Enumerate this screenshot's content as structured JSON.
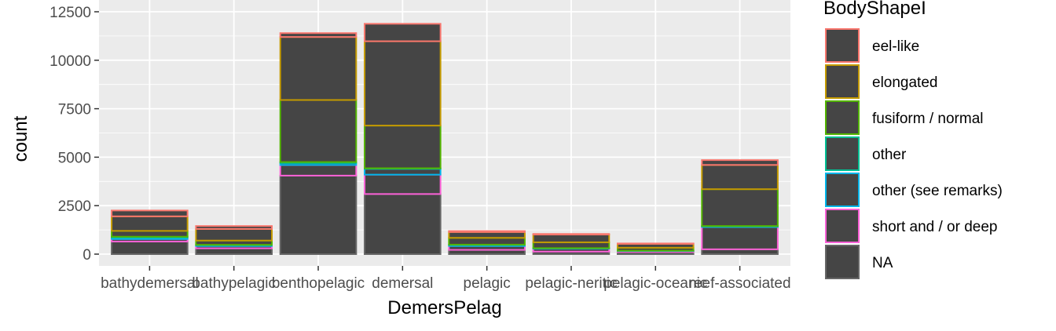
{
  "chart_data": {
    "type": "bar",
    "stacked": true,
    "xlabel": "DemersPelag",
    "ylabel": "count",
    "ylim": [
      0,
      12500
    ],
    "y_ticks": [
      0,
      2500,
      5000,
      7500,
      10000,
      12500
    ],
    "y_tick_labels": [
      "0",
      "2500",
      "5000",
      "7500",
      "10000",
      "12500"
    ],
    "categories": [
      "bathydemersal",
      "bathypelagic",
      "benthopelagic",
      "demersal",
      "pelagic",
      "pelagic-neritic",
      "pelagic-oceanic",
      "reef-associated"
    ],
    "legend_title": "BodyShapeI",
    "legend_position": "right",
    "grid": true,
    "bar_fill": "#454545",
    "panel_background": "#ebebeb",
    "series": [
      {
        "name": "eel-like",
        "color": "#F8766D",
        "values": [
          300,
          150,
          200,
          900,
          50,
          30,
          20,
          250
        ]
      },
      {
        "name": "elongated",
        "color": "#C49A00",
        "values": [
          750,
          600,
          3250,
          4350,
          300,
          400,
          200,
          1250
        ]
      },
      {
        "name": "fusiform / normal",
        "color": "#53B400",
        "values": [
          300,
          220,
          3200,
          2200,
          350,
          300,
          150,
          1900
        ]
      },
      {
        "name": "other",
        "color": "#00C094",
        "values": [
          40,
          20,
          50,
          30,
          20,
          10,
          10,
          20
        ]
      },
      {
        "name": "other (see remarks)",
        "color": "#00B6EB",
        "values": [
          80,
          40,
          100,
          300,
          50,
          20,
          10,
          30
        ]
      },
      {
        "name": "short and / or deep",
        "color": "#FB61D7",
        "values": [
          130,
          120,
          550,
          1000,
          200,
          150,
          50,
          1150
        ]
      },
      {
        "name": "NA",
        "color": "#666666",
        "values": [
          650,
          300,
          4050,
          3100,
          220,
          130,
          110,
          250
        ]
      }
    ]
  }
}
